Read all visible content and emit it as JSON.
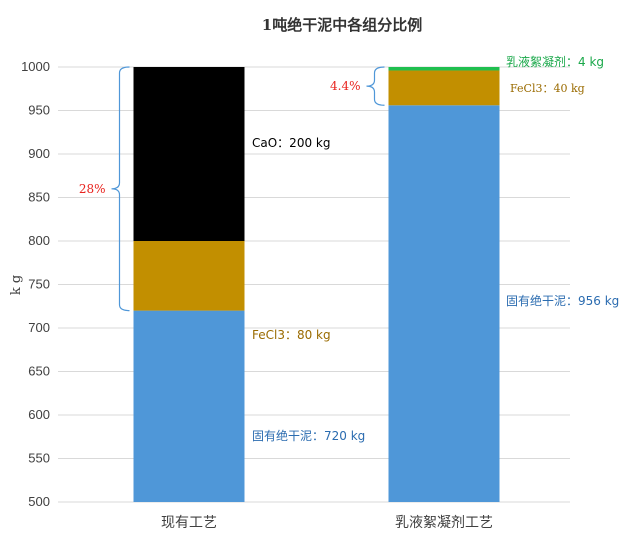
{
  "chart_data": {
    "type": "bar",
    "stacked": true,
    "title": "1吨绝干泥中各组分比例",
    "ylabel": "k g",
    "xlabel": "",
    "ylim": [
      500,
      1000
    ],
    "yticks": [
      500,
      550,
      600,
      650,
      700,
      750,
      800,
      850,
      900,
      950,
      1000
    ],
    "grid": true,
    "categories": [
      "现有工艺",
      "乳液絮凝剂工艺"
    ],
    "bars": [
      {
        "category": "现有工艺",
        "segments": [
          {
            "value": 720,
            "color": "#4f97d8",
            "label": "固有绝干泥：720 kg",
            "label_color": "#2b6cb0"
          },
          {
            "value": 80,
            "color": "#c28f00",
            "label": "FeCl3：80 kg",
            "label_color": "#9a6b00"
          },
          {
            "value": 200,
            "color": "#000000",
            "label": "CaO：200 kg",
            "label_color": "#000000"
          }
        ],
        "bracket": {
          "from": 720,
          "to": 1000,
          "text": "28%",
          "color": "#4f97d8",
          "text_color": "#e8231e"
        }
      },
      {
        "category": "乳液絮凝剂工艺",
        "segments": [
          {
            "value": 956,
            "color": "#4f97d8",
            "label": "固有绝干泥：956 kg",
            "label_color": "#2b6cb0"
          },
          {
            "value": 40,
            "color": "#c28f00",
            "label": "FeCl3：40 kg",
            "label_color": "#9a6b00"
          },
          {
            "value": 4,
            "color": "#1fbf4f",
            "label": "乳液絮凝剂：4 kg",
            "label_color": "#1aa84a"
          }
        ],
        "bracket": {
          "from": 956,
          "to": 1000,
          "text": "4.4%",
          "color": "#4f97d8",
          "text_color": "#e8231e"
        }
      }
    ]
  }
}
